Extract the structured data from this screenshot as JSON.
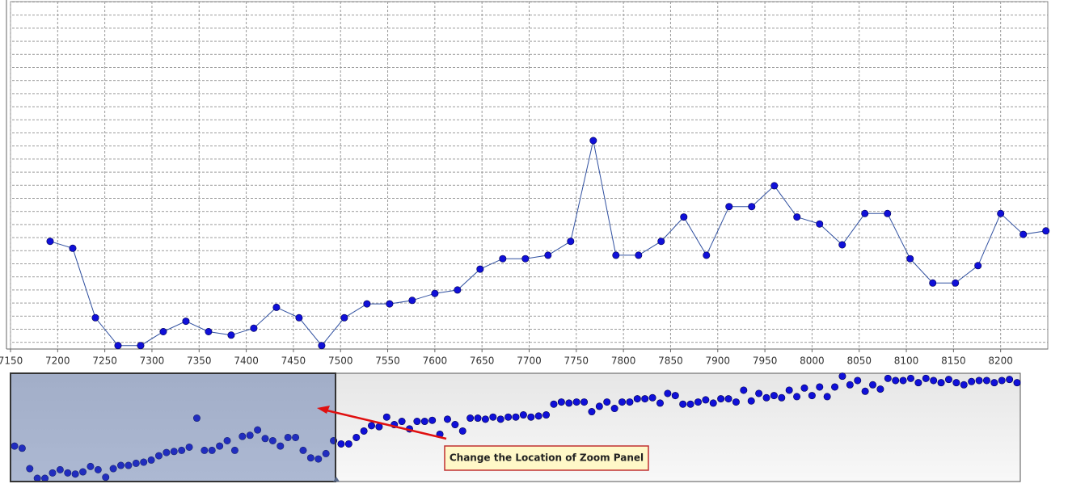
{
  "chart_data": [
    {
      "type": "line",
      "x": [
        7192,
        7216,
        7240,
        7264,
        7288,
        7312,
        7336,
        7360,
        7384,
        7408,
        7432,
        7456,
        7480,
        7504,
        7528,
        7552,
        7576,
        7600,
        7624,
        7648,
        7672,
        7696,
        7720,
        7744,
        7768,
        7792,
        7816,
        7840,
        7864,
        7888,
        7912,
        7936,
        7960,
        7984,
        8008,
        8032,
        8056,
        8080,
        8104,
        8128,
        8152,
        8176,
        8200,
        8224,
        8248
      ],
      "series": [
        {
          "color": "#1010d8",
          "values": [
            31,
            29,
            9,
            1,
            1,
            5,
            8,
            5,
            4,
            6,
            12,
            9,
            1,
            9,
            13,
            13,
            14,
            16,
            17,
            23,
            26,
            26,
            27,
            31,
            60,
            27,
            27,
            31,
            38,
            27,
            41,
            41,
            47,
            38,
            36,
            30,
            39,
            39,
            26,
            19,
            19,
            24,
            39,
            33,
            34
          ]
        }
      ],
      "xlim": [
        7150,
        8250
      ],
      "xticks": [
        7150,
        7200,
        7250,
        7300,
        7350,
        7400,
        7450,
        7500,
        7550,
        7600,
        7650,
        7700,
        7750,
        7800,
        7850,
        7900,
        7950,
        8000,
        8050,
        8100,
        8150,
        8200
      ],
      "ylim": [
        0,
        100
      ],
      "grid": true
    },
    {
      "type": "scatter",
      "series": [
        {
          "color": "#1010d8",
          "values": [
            33,
            31,
            12,
            3,
            3,
            8,
            11,
            8,
            7,
            9,
            14,
            11,
            4,
            12,
            15,
            15,
            17,
            18,
            20,
            24,
            27,
            28,
            29,
            32,
            59,
            29,
            29,
            33,
            38,
            29,
            42,
            43,
            48,
            40,
            38,
            33,
            41,
            41,
            29,
            22,
            21,
            26,
            38,
            35,
            35,
            41,
            47,
            52,
            51,
            60,
            53,
            56,
            49,
            56,
            56,
            57,
            44,
            58,
            53,
            47,
            59,
            59,
            58,
            60,
            58,
            60,
            60,
            62,
            60,
            61,
            62,
            72,
            74,
            73,
            74,
            74,
            65,
            70,
            74,
            68,
            74,
            74,
            77,
            77,
            78,
            73,
            82,
            80,
            72,
            72,
            74,
            76,
            73,
            77,
            77,
            74,
            85,
            75,
            82,
            78,
            80,
            78,
            85,
            79,
            87,
            80,
            88,
            79,
            88,
            98,
            90,
            94,
            84,
            90,
            86,
            96,
            94,
            94,
            96,
            92,
            96,
            94,
            92,
            95,
            92,
            90,
            93,
            94,
            94,
            92,
            94,
            95,
            92
          ]
        }
      ],
      "ylim": [
        0,
        100
      ],
      "annotation": "Change the Location of Zoom Panel"
    }
  ]
}
